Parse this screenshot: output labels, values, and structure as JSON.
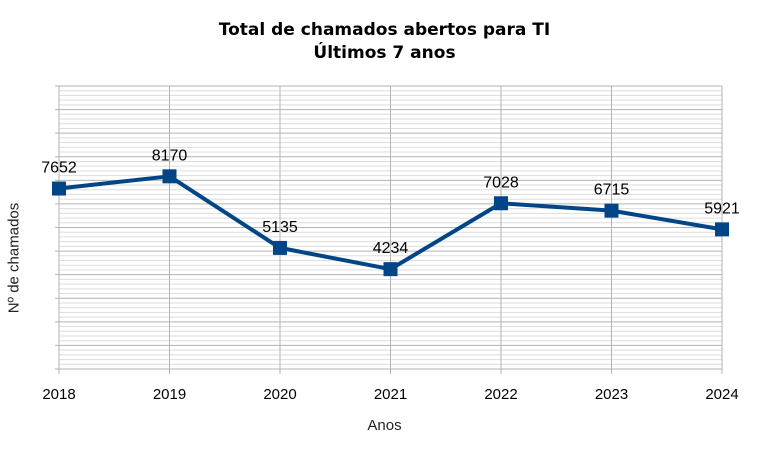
{
  "chart_data": {
    "type": "line",
    "title": "Total de chamados abertos para TI",
    "subtitle": "Últimos 7 anos",
    "xlabel": "Anos",
    "ylabel": "Nº de chamados",
    "categories": [
      "2018",
      "2019",
      "2020",
      "2021",
      "2022",
      "2023",
      "2024"
    ],
    "series": [
      {
        "values": [
          7652,
          8170,
          5135,
          4234,
          7028,
          6715,
          5921
        ]
      }
    ],
    "ylim": [
      0,
      12000
    ],
    "grid": true,
    "legend": "none",
    "colors": {
      "line": "#004586",
      "grid_major": "#b3b3b3",
      "grid_minor": "#dddddd"
    }
  }
}
